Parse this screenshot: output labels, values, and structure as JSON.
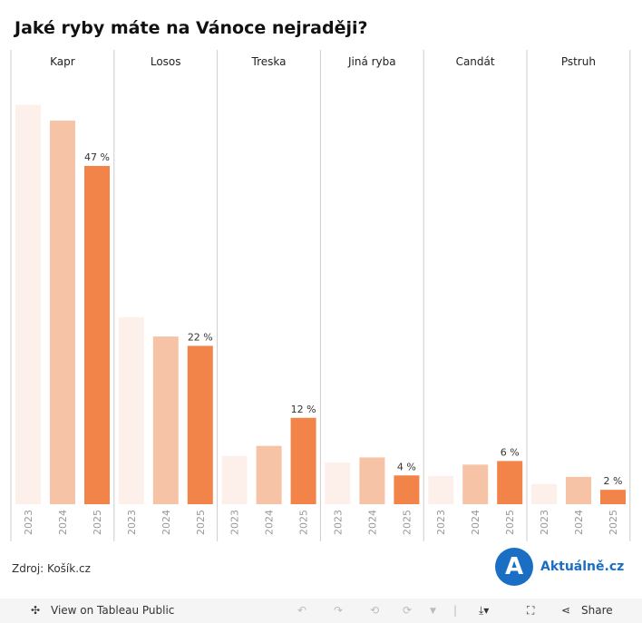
{
  "title": "Jaké ryby máte na Vánoce nejraději?",
  "chart_data": {
    "type": "bar",
    "categories": [
      "Kapr",
      "Losos",
      "Treska",
      "Jiná ryba",
      "Candát",
      "Pstruh"
    ],
    "years": [
      "2023",
      "2024",
      "2025"
    ],
    "series": [
      {
        "name": "2023",
        "values": [
          55.5,
          26,
          6.7,
          5.8,
          3.9,
          2.8
        ]
      },
      {
        "name": "2024",
        "values": [
          53.3,
          23.3,
          8.1,
          6.5,
          5.5,
          3.8
        ]
      },
      {
        "name": "2025",
        "values": [
          47,
          22,
          12,
          4,
          6,
          2
        ]
      }
    ],
    "data_labels": [
      "47 %",
      "22 %",
      "12 %",
      "4 %",
      "6 %",
      "2 %"
    ],
    "colors": [
      "#fdf0eb",
      "#f7c3a6",
      "#f28449"
    ],
    "ylim": [
      0,
      56
    ],
    "grid": false
  },
  "source": "Zdroj: Košík.cz",
  "logo": {
    "letter": "A",
    "text": "Aktuálně.cz"
  },
  "toolbar": {
    "view": "View on Tableau Public",
    "share": "Share"
  }
}
